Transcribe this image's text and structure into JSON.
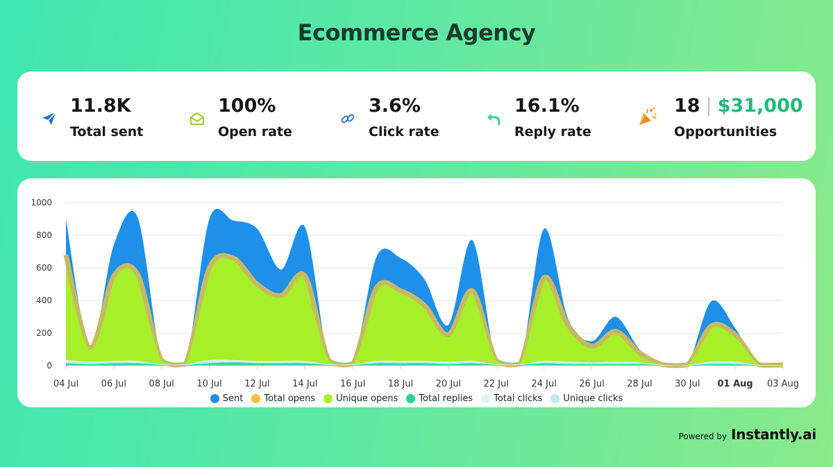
{
  "title": "Ecommerce Agency",
  "stats": [
    {
      "id": "sent",
      "value": "11.8K",
      "label": "Total sent",
      "icon": "paper-plane-icon"
    },
    {
      "id": "open",
      "value": "100%",
      "label": "Open rate",
      "icon": "envelope-open-icon"
    },
    {
      "id": "click",
      "value": "3.6%",
      "label": "Click rate",
      "icon": "link-icon"
    },
    {
      "id": "reply",
      "value": "16.1%",
      "label": "Reply rate",
      "icon": "reply-arrow-icon"
    },
    {
      "id": "opps",
      "value": "18",
      "separator": "|",
      "money": "$31,000",
      "label": "Opportunities",
      "icon": "party-popper-icon"
    }
  ],
  "colors": {
    "sent": "#1e90ea",
    "total_opens": "#f5c12c",
    "total_opens_band": "#c6b964",
    "unique_opens": "#a6ef29",
    "total_replies": "#22d68f",
    "total_clicks": "#d9f3f6",
    "unique_clicks": "#bfe9f0",
    "money": "#1fba7a"
  },
  "footer": {
    "powered_by": "Powered by",
    "brand": "Instantly.ai"
  },
  "chart_data": {
    "type": "area",
    "ylim": [
      0,
      1000
    ],
    "yticks": [
      0,
      200,
      400,
      600,
      800,
      1000
    ],
    "x": [
      "04 Jul",
      "05 Jul",
      "06 Jul",
      "07 Jul",
      "08 Jul",
      "09 Jul",
      "10 Jul",
      "11 Jul",
      "12 Jul",
      "13 Jul",
      "14 Jul",
      "15 Jul",
      "16 Jul",
      "17 Jul",
      "18 Jul",
      "19 Jul",
      "20 Jul",
      "21 Jul",
      "22 Jul",
      "23 Jul",
      "24 Jul",
      "25 Jul",
      "26 Jul",
      "27 Jul",
      "28 Jul",
      "29 Jul",
      "30 Jul",
      "31 Jul",
      "01 Aug",
      "02 Aug",
      "03 Aug"
    ],
    "xtick_labels": [
      "04 Jul",
      "06 Jul",
      "08 Jul",
      "10 Jul",
      "12 Jul",
      "14 Jul",
      "16 Jul",
      "18 Jul",
      "20 Jul",
      "22 Jul",
      "24 Jul",
      "26 Jul",
      "28 Jul",
      "30 Jul",
      "01 Aug",
      "03 Aug"
    ],
    "bold_tick": "01 Aug",
    "series": [
      {
        "name": "Sent",
        "key": "sent",
        "values": [
          900,
          110,
          740,
          910,
          30,
          10,
          900,
          890,
          840,
          590,
          850,
          30,
          10,
          670,
          660,
          530,
          250,
          770,
          30,
          10,
          840,
          290,
          150,
          300,
          100,
          5,
          5,
          395,
          230,
          5,
          5
        ]
      },
      {
        "name": "Total opens",
        "key": "total_opens",
        "values": [
          680,
          110,
          550,
          560,
          30,
          10,
          600,
          660,
          500,
          430,
          550,
          30,
          10,
          480,
          460,
          370,
          190,
          460,
          30,
          10,
          540,
          250,
          120,
          210,
          80,
          5,
          5,
          245,
          190,
          5,
          5
        ]
      },
      {
        "name": "Unique opens",
        "key": "unique_opens",
        "values": [
          590,
          100,
          440,
          470,
          30,
          10,
          520,
          530,
          420,
          360,
          460,
          30,
          10,
          400,
          400,
          330,
          170,
          410,
          30,
          10,
          470,
          210,
          100,
          170,
          60,
          5,
          5,
          210,
          170,
          5,
          5
        ]
      },
      {
        "name": "Total replies",
        "key": "total_replies",
        "values": [
          15,
          10,
          15,
          15,
          5,
          5,
          15,
          20,
          15,
          15,
          15,
          5,
          5,
          15,
          15,
          15,
          10,
          15,
          5,
          5,
          15,
          10,
          10,
          10,
          10,
          2,
          2,
          10,
          10,
          2,
          2
        ]
      },
      {
        "name": "Total clicks",
        "key": "total_clicks",
        "values": [
          35,
          25,
          30,
          30,
          10,
          10,
          35,
          35,
          30,
          30,
          30,
          10,
          10,
          30,
          30,
          30,
          25,
          30,
          10,
          10,
          30,
          25,
          20,
          25,
          20,
          5,
          5,
          25,
          25,
          5,
          5
        ]
      },
      {
        "name": "Unique clicks",
        "key": "unique_clicks",
        "values": [
          25,
          20,
          20,
          20,
          8,
          8,
          25,
          25,
          22,
          22,
          22,
          8,
          8,
          22,
          22,
          22,
          18,
          22,
          8,
          8,
          22,
          18,
          15,
          18,
          15,
          4,
          4,
          18,
          18,
          4,
          4
        ]
      }
    ]
  }
}
